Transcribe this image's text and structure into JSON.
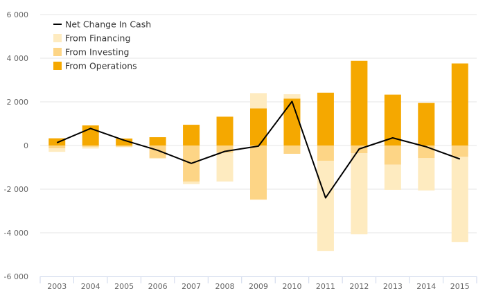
{
  "chart_data": {
    "type": "bar",
    "stacked": "positive-negative",
    "categories": [
      "2003",
      "2004",
      "2005",
      "2006",
      "2007",
      "2008",
      "2009",
      "2010",
      "2011",
      "2012",
      "2013",
      "2014",
      "2015"
    ],
    "series": [
      {
        "name": "From Operations",
        "type": "bar",
        "color": "#f5a800",
        "values": [
          330,
          920,
          320,
          380,
          950,
          1320,
          1700,
          2150,
          2420,
          3880,
          2330,
          1950,
          3760
        ]
      },
      {
        "name": "From Investing",
        "type": "bar",
        "color": "#fdd586",
        "values": [
          -130,
          -60,
          -50,
          -570,
          -1650,
          -330,
          -2480,
          -380,
          -700,
          -350,
          -880,
          -580,
          -520
        ]
      },
      {
        "name": "From Financing",
        "type": "bar",
        "color": "#feebc0",
        "values": [
          -160,
          -80,
          -30,
          -30,
          -120,
          -1320,
          700,
          200,
          -4130,
          -3720,
          -1150,
          -1480,
          -3900
        ]
      },
      {
        "name": "Net Change In Cash",
        "type": "line",
        "color": "#000000",
        "values": [
          130,
          780,
          240,
          -220,
          -820,
          -270,
          -30,
          2020,
          -2400,
          -160,
          350,
          -60,
          -620
        ]
      }
    ],
    "ylim": [
      -6000,
      6000
    ],
    "yticks": [
      -6000,
      -4000,
      -2000,
      0,
      2000,
      4000,
      6000
    ],
    "ytick_labels": [
      "-6 000",
      "-4 000",
      "-2 000",
      "0",
      "2 000",
      "4 000",
      "6 000"
    ],
    "grid": true,
    "legend_position": "top-left",
    "legend": [
      "Net Change In Cash",
      "From Financing",
      "From Investing",
      "From Operations"
    ]
  }
}
